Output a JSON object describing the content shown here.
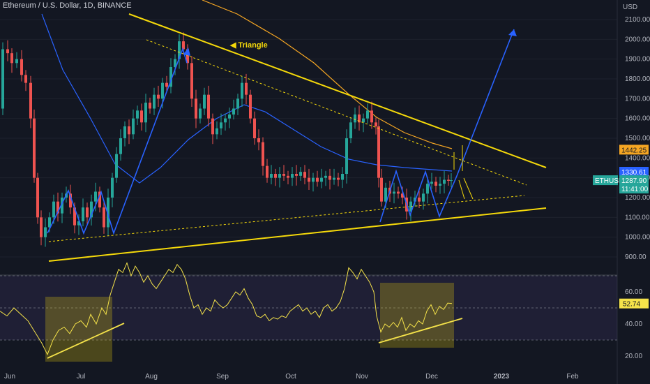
{
  "header": {
    "title": "Ethereum / U.S. Dollar, 1D, BINANCE"
  },
  "annotations": {
    "triangle_label": "Triangle"
  },
  "colors": {
    "background": "#131722",
    "up_candle": "#26a69a",
    "down_candle": "#ef5350",
    "triangle_line": "#f5d90a",
    "ma_fast": "#2962ff",
    "ma_slow": "#f5a623",
    "rsi_line": "#f5e34a",
    "rsi_band": "#7e57c2"
  },
  "chart_data": {
    "type": "candlestick",
    "title": "Ethereum / U.S. Dollar, 1D, BINANCE",
    "currency": "USD",
    "x_labels": [
      "Jun",
      "Jul",
      "Aug",
      "Sep",
      "Oct",
      "Nov",
      "Dec",
      "2023",
      "Feb"
    ],
    "price_ticks": [
      "2100.00",
      "2000.00",
      "1900.00",
      "1800.00",
      "1700.00",
      "1600.00",
      "1500.00",
      "1400.00",
      "1300.00",
      "1200.00",
      "1100.00",
      "1000.00",
      "900.00"
    ],
    "price_axis_label": "USD",
    "price_range": [
      850,
      2150
    ],
    "price_badges": [
      {
        "label": "1442.25",
        "value": 1442.25,
        "color": "#f5a623"
      },
      {
        "label": "1330.61",
        "value": 1330.61,
        "color": "#2962ff"
      },
      {
        "symbol": "ETHUSD",
        "label": "1287.90",
        "countdown": "11:41:00",
        "value": 1287.9,
        "color": "#26a69a"
      }
    ],
    "rsi": {
      "ticks": [
        "60.00",
        "40.00",
        "20.00"
      ],
      "range": [
        17,
        78
      ],
      "current_label": "52.74",
      "current": 52.74,
      "band": [
        30,
        70
      ]
    },
    "price_path": [
      [
        0,
        1650
      ],
      [
        5,
        1950
      ],
      [
        12,
        1930
      ],
      [
        18,
        1880
      ],
      [
        25,
        1900
      ],
      [
        32,
        1820
      ],
      [
        38,
        1780
      ],
      [
        45,
        1600
      ],
      [
        50,
        1300
      ],
      [
        55,
        1100
      ],
      [
        60,
        1000
      ],
      [
        66,
        1050
      ],
      [
        72,
        1100
      ],
      [
        78,
        1180
      ],
      [
        84,
        1120
      ],
      [
        90,
        1200
      ],
      [
        96,
        1220
      ],
      [
        102,
        1150
      ],
      [
        108,
        1060
      ],
      [
        114,
        1080
      ],
      [
        120,
        1150
      ],
      [
        126,
        1100
      ],
      [
        132,
        1180
      ],
      [
        138,
        1230
      ],
      [
        144,
        1150
      ],
      [
        150,
        1050
      ],
      [
        156,
        1200
      ],
      [
        162,
        1300
      ],
      [
        168,
        1420
      ],
      [
        174,
        1500
      ],
      [
        180,
        1560
      ],
      [
        186,
        1520
      ],
      [
        192,
        1600
      ],
      [
        198,
        1640
      ],
      [
        204,
        1580
      ],
      [
        210,
        1680
      ],
      [
        216,
        1650
      ],
      [
        222,
        1720
      ],
      [
        228,
        1700
      ],
      [
        234,
        1780
      ],
      [
        240,
        1760
      ],
      [
        246,
        1860
      ],
      [
        252,
        1900
      ],
      [
        258,
        1990
      ],
      [
        264,
        1950
      ],
      [
        270,
        1880
      ],
      [
        276,
        1700
      ],
      [
        282,
        1600
      ],
      [
        288,
        1650
      ],
      [
        294,
        1720
      ],
      [
        300,
        1600
      ],
      [
        306,
        1520
      ],
      [
        312,
        1550
      ],
      [
        318,
        1580
      ],
      [
        324,
        1600
      ],
      [
        330,
        1620
      ],
      [
        336,
        1650
      ],
      [
        342,
        1700
      ],
      [
        348,
        1780
      ],
      [
        354,
        1720
      ],
      [
        360,
        1600
      ],
      [
        366,
        1500
      ],
      [
        372,
        1480
      ],
      [
        378,
        1360
      ],
      [
        384,
        1300
      ],
      [
        390,
        1320
      ],
      [
        396,
        1300
      ],
      [
        402,
        1320
      ],
      [
        408,
        1310
      ],
      [
        414,
        1300
      ],
      [
        420,
        1320
      ],
      [
        426,
        1310
      ],
      [
        432,
        1330
      ],
      [
        438,
        1300
      ],
      [
        444,
        1280
      ],
      [
        450,
        1300
      ],
      [
        456,
        1280
      ],
      [
        462,
        1300
      ],
      [
        468,
        1310
      ],
      [
        474,
        1290
      ],
      [
        480,
        1300
      ],
      [
        486,
        1290
      ],
      [
        492,
        1320
      ],
      [
        498,
        1500
      ],
      [
        504,
        1580
      ],
      [
        510,
        1620
      ],
      [
        516,
        1580
      ],
      [
        522,
        1600
      ],
      [
        528,
        1640
      ],
      [
        534,
        1580
      ],
      [
        540,
        1560
      ],
      [
        544,
        1300
      ],
      [
        548,
        1180
      ],
      [
        554,
        1250
      ],
      [
        560,
        1220
      ],
      [
        566,
        1230
      ],
      [
        572,
        1220
      ],
      [
        578,
        1200
      ],
      [
        584,
        1130
      ],
      [
        590,
        1180
      ],
      [
        596,
        1200
      ],
      [
        602,
        1180
      ],
      [
        608,
        1220
      ],
      [
        614,
        1270
      ],
      [
        620,
        1280
      ],
      [
        626,
        1260
      ],
      [
        632,
        1270
      ],
      [
        638,
        1290
      ],
      [
        644,
        1285
      ],
      [
        648,
        1288
      ]
    ],
    "rsi_path": [
      [
        0,
        48
      ],
      [
        10,
        45
      ],
      [
        20,
        50
      ],
      [
        30,
        46
      ],
      [
        40,
        42
      ],
      [
        50,
        35
      ],
      [
        60,
        28
      ],
      [
        68,
        21
      ],
      [
        76,
        30
      ],
      [
        84,
        36
      ],
      [
        92,
        38
      ],
      [
        100,
        34
      ],
      [
        108,
        40
      ],
      [
        116,
        42
      ],
      [
        124,
        38
      ],
      [
        130,
        46
      ],
      [
        138,
        40
      ],
      [
        146,
        50
      ],
      [
        152,
        46
      ],
      [
        158,
        58
      ],
      [
        164,
        66
      ],
      [
        170,
        74
      ],
      [
        176,
        72
      ],
      [
        182,
        78
      ],
      [
        188,
        70
      ],
      [
        194,
        76
      ],
      [
        200,
        72
      ],
      [
        206,
        66
      ],
      [
        212,
        70
      ],
      [
        218,
        65
      ],
      [
        224,
        62
      ],
      [
        230,
        66
      ],
      [
        236,
        70
      ],
      [
        242,
        74
      ],
      [
        248,
        72
      ],
      [
        254,
        77
      ],
      [
        260,
        74
      ],
      [
        266,
        68
      ],
      [
        272,
        58
      ],
      [
        278,
        50
      ],
      [
        284,
        52
      ],
      [
        290,
        46
      ],
      [
        296,
        50
      ],
      [
        302,
        48
      ],
      [
        308,
        55
      ],
      [
        314,
        52
      ],
      [
        320,
        50
      ],
      [
        326,
        52
      ],
      [
        332,
        56
      ],
      [
        338,
        60
      ],
      [
        344,
        58
      ],
      [
        350,
        62
      ],
      [
        356,
        56
      ],
      [
        362,
        52
      ],
      [
        368,
        45
      ],
      [
        374,
        44
      ],
      [
        380,
        46
      ],
      [
        386,
        42
      ],
      [
        392,
        44
      ],
      [
        398,
        43
      ],
      [
        404,
        45
      ],
      [
        410,
        44
      ],
      [
        416,
        48
      ],
      [
        422,
        50
      ],
      [
        428,
        52
      ],
      [
        434,
        48
      ],
      [
        440,
        50
      ],
      [
        446,
        46
      ],
      [
        452,
        48
      ],
      [
        458,
        44
      ],
      [
        464,
        50
      ],
      [
        470,
        52
      ],
      [
        476,
        48
      ],
      [
        482,
        50
      ],
      [
        488,
        54
      ],
      [
        494,
        62
      ],
      [
        500,
        75
      ],
      [
        506,
        72
      ],
      [
        512,
        68
      ],
      [
        518,
        74
      ],
      [
        524,
        70
      ],
      [
        530,
        66
      ],
      [
        536,
        60
      ],
      [
        540,
        45
      ],
      [
        546,
        35
      ],
      [
        552,
        40
      ],
      [
        558,
        38
      ],
      [
        564,
        41
      ],
      [
        570,
        38
      ],
      [
        576,
        44
      ],
      [
        582,
        36
      ],
      [
        588,
        40
      ],
      [
        594,
        38
      ],
      [
        600,
        42
      ],
      [
        606,
        40
      ],
      [
        612,
        48
      ],
      [
        618,
        52
      ],
      [
        624,
        46
      ],
      [
        630,
        51
      ],
      [
        636,
        49
      ],
      [
        642,
        53
      ],
      [
        648,
        52.74
      ]
    ]
  }
}
